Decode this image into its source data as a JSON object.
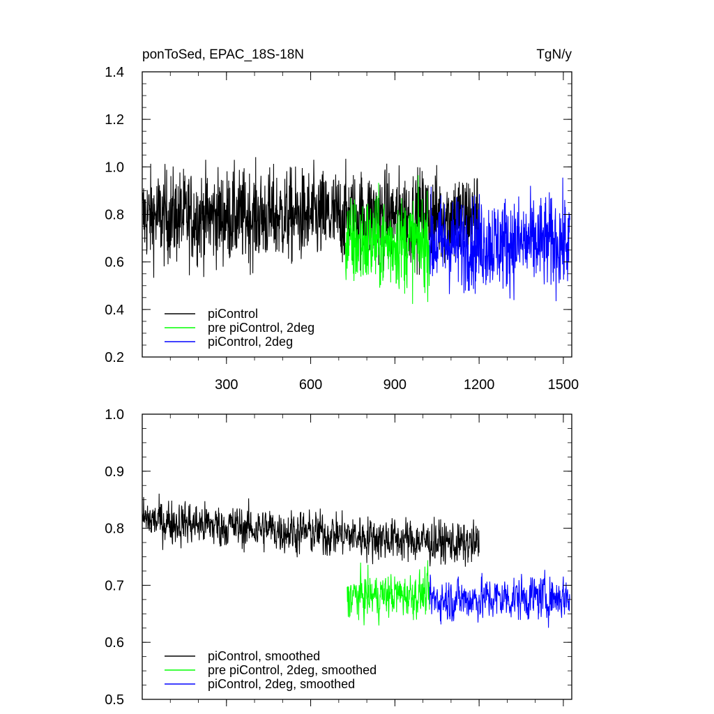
{
  "chart_data": [
    {
      "type": "line",
      "title_left": "ponToSed, EPAC_18S-18N",
      "title_right": "TgN/y",
      "xlim": [
        0,
        1530
      ],
      "ylim": [
        0.2,
        1.4
      ],
      "x_ticks": [
        300,
        600,
        900,
        1200,
        1500
      ],
      "x_tick_labels": [
        "300",
        "600",
        "900",
        "1200",
        "1500"
      ],
      "y_ticks": [
        0.2,
        0.4,
        0.6,
        0.8,
        1.0,
        1.2,
        1.4
      ],
      "y_tick_labels": [
        "0.2",
        "0.4",
        "0.6",
        "0.8",
        "1.0",
        "1.2",
        "1.4"
      ],
      "legend_position": "bottom-left",
      "series": [
        {
          "name": "piControl",
          "color": "#000000",
          "x_range": [
            1,
            1200
          ],
          "mean": 0.79,
          "spread": 0.13
        },
        {
          "name": "pre piControl, 2deg",
          "color": "#00ff00",
          "x_range": [
            724,
            1023
          ],
          "mean": 0.68,
          "spread": 0.13
        },
        {
          "name": "piControl, 2deg",
          "color": "#0000ff",
          "x_range": [
            1024,
            1523
          ],
          "mean": 0.68,
          "spread": 0.13
        }
      ]
    },
    {
      "type": "line",
      "xlim": [
        0,
        1530
      ],
      "ylim": [
        0.5,
        1.0
      ],
      "x_ticks": [
        300,
        600,
        900,
        1200,
        1500
      ],
      "y_ticks": [
        0.5,
        0.6,
        0.7,
        0.8,
        0.9,
        1.0
      ],
      "y_tick_labels": [
        "0.5",
        "0.6",
        "0.7",
        "0.8",
        "0.9",
        "1.0"
      ],
      "legend_position": "bottom-left",
      "series": [
        {
          "name": "piControl, smoothed",
          "color": "#000000",
          "x_range": [
            1,
            1200
          ],
          "mean_start": 0.815,
          "mean_end": 0.77,
          "spread": 0.03
        },
        {
          "name": "pre piControl, 2deg, smoothed",
          "color": "#00ff00",
          "x_range": [
            730,
            1023
          ],
          "mean_start": 0.68,
          "mean_end": 0.685,
          "spread": 0.03
        },
        {
          "name": "piControl, 2deg, smoothed",
          "color": "#0000ff",
          "x_range": [
            1024,
            1523
          ],
          "mean_start": 0.675,
          "mean_end": 0.68,
          "spread": 0.03
        }
      ]
    }
  ]
}
